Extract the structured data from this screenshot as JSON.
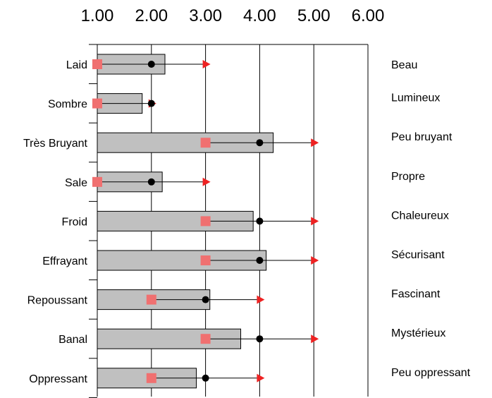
{
  "chart_data": {
    "type": "bar",
    "orientation": "horizontal",
    "x_ticks": [
      "1.00",
      "2.00",
      "3.00",
      "4.00",
      "5.00",
      "6.00"
    ],
    "xlim": [
      1.0,
      6.0
    ],
    "grid": "vertical",
    "left_labels": [
      "Laid",
      "Sombre",
      "Très Bruyant",
      "Sale",
      "Froid",
      "Effrayant",
      "Repoussant",
      "Banal",
      "Oppressant"
    ],
    "right_labels": [
      "Beau",
      "Lumineux",
      "Peu bruyant",
      "Propre",
      "Chaleureux",
      "Sécurisant",
      "Fascinant",
      "Mystérieux",
      "Peu oppressant"
    ],
    "bar_values": [
      2.25,
      1.83,
      4.25,
      2.2,
      3.88,
      4.12,
      3.08,
      3.65,
      2.83
    ],
    "marker_min": [
      1.0,
      1.0,
      3.0,
      1.0,
      3.0,
      3.0,
      2.0,
      3.0,
      2.0
    ],
    "marker_median": [
      2.0,
      2.0,
      4.0,
      2.0,
      4.0,
      4.0,
      3.0,
      4.0,
      3.0
    ],
    "marker_max": [
      3.0,
      2.0,
      5.0,
      3.0,
      5.0,
      5.0,
      4.0,
      5.0,
      4.0
    ],
    "colors": {
      "bar_fill": "#c0c0c0",
      "bar_stroke": "#000000",
      "min_marker": "#f07070",
      "median_marker": "#000000",
      "max_marker": "#ee2222",
      "grid": "#000000"
    }
  }
}
